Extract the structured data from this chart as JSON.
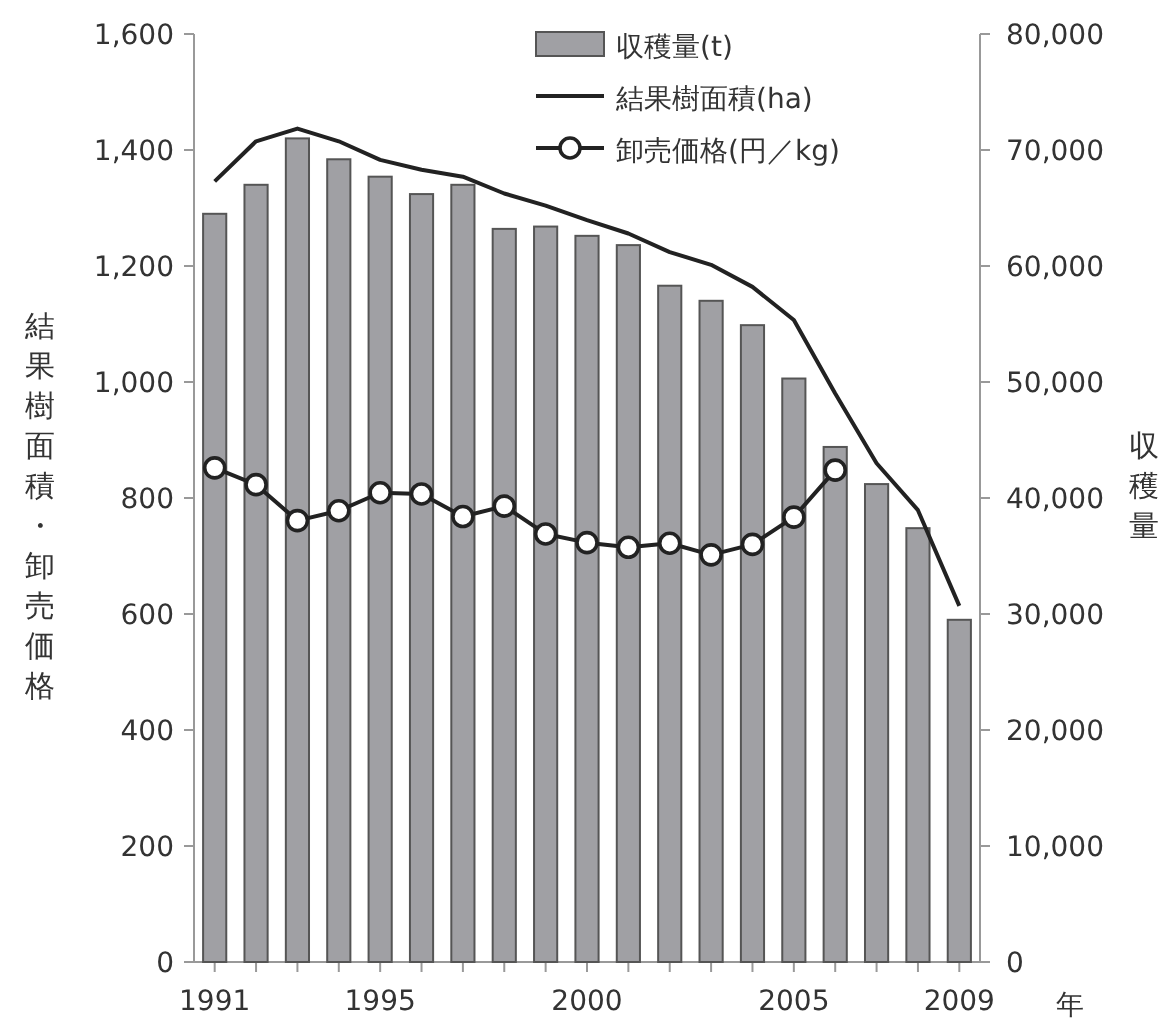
{
  "chart_data": {
    "type": "bar",
    "categories": [
      "1991",
      null,
      null,
      null,
      "1995",
      null,
      null,
      null,
      null,
      "2000",
      null,
      null,
      null,
      null,
      "2005",
      null,
      null,
      null,
      "2009"
    ],
    "series": [
      {
        "name": "収穫量(t)",
        "axis": "y2",
        "color": "#a0a0a4",
        "values": [
          64500,
          67000,
          71000,
          69200,
          67700,
          66200,
          67000,
          63200,
          63400,
          62600,
          61800,
          58300,
          57000,
          54900,
          50300,
          44400,
          41200,
          37400,
          29500
        ]
      },
      {
        "name": "結果樹面積(ha)",
        "type": "line",
        "color": "#222222",
        "marker": "none",
        "values": [
          1346,
          1415,
          1437,
          1415,
          1383,
          1366,
          1354,
          1325,
          1304,
          1279,
          1256,
          1224,
          1202,
          1164,
          1107,
          980,
          860,
          779,
          614
        ]
      },
      {
        "name": "卸売価格(円／kg)",
        "type": "line",
        "color": "#222222",
        "marker": "circle",
        "values": [
          852,
          823,
          761,
          778,
          809,
          807,
          768,
          786,
          738,
          723,
          715,
          722,
          702,
          720,
          767,
          848,
          null,
          null,
          null
        ]
      }
    ],
    "ylim": [
      0,
      1600
    ],
    "yticks": [
      0,
      200,
      400,
      600,
      800,
      {
        "value": 1000,
        "label": "1,000"
      },
      {
        "value": 1200,
        "label": "1,200"
      },
      {
        "value": 1400,
        "label": "1,400"
      },
      {
        "value": 1600,
        "label": "1,600"
      }
    ],
    "y2lim": [
      0,
      80000
    ],
    "y2ticks": [
      0,
      {
        "value": 10000,
        "label": "10,000"
      },
      {
        "value": 20000,
        "label": "20,000"
      },
      {
        "value": 30000,
        "label": "30,000"
      },
      {
        "value": 40000,
        "label": "40,000"
      },
      {
        "value": 50000,
        "label": "50,000"
      },
      {
        "value": 60000,
        "label": "60,000"
      },
      {
        "value": 70000,
        "label": "70,000"
      },
      {
        "value": 80000,
        "label": "80,000"
      }
    ],
    "xlabel": "年",
    "ylabel": "結果樹面積・卸売価格",
    "y2label": "収穫量",
    "legend": "top right"
  }
}
